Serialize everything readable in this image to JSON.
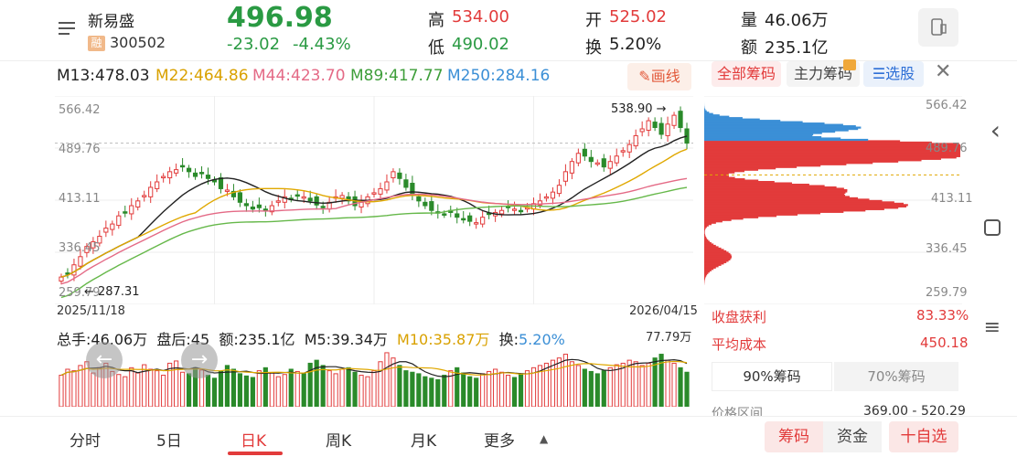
{
  "stock": {
    "name": "新易盛",
    "badge": "融",
    "code": "300502",
    "price": "496.98",
    "change": "-23.02",
    "change_pct": "-4.43%",
    "high_label": "高",
    "high": "534.00",
    "low_label": "低",
    "low": "490.02",
    "open_label": "开",
    "open": "525.02",
    "turnover_label": "换",
    "turnover": "5.20%",
    "volume_label": "量",
    "volume": "46.06万",
    "amount_label": "额",
    "amount": "235.1亿"
  },
  "ma_bar": {
    "m13": "M13:478.03",
    "m22": "M22:464.86",
    "m44": "M44:423.70",
    "m89": "M89:417.77",
    "m250": "M250:284.16",
    "draw_btn": "画线"
  },
  "chip_tabs": {
    "all": "全部筹码",
    "main": "主力筹码",
    "select": "选股"
  },
  "price_axis": {
    "left": [
      "566.42",
      "489.76",
      "413.11",
      "336.45",
      "259.79"
    ],
    "right": [
      "566.42",
      "489.76",
      "413.11",
      "336.45",
      "259.79"
    ]
  },
  "annotations": {
    "high_mark": "538.90",
    "low_mark": "287.31",
    "start_date": "2025/11/18",
    "end_date": "2026/04/15"
  },
  "volume_bar": {
    "total": "总手:46.06万",
    "after": "盘后:45",
    "amount": "额:235.1亿",
    "m5": "M5:39.34万",
    "m10": "M10:35.87万",
    "turn_label": "换:",
    "turn": "5.20%",
    "max": "77.79万"
  },
  "chip_stats": {
    "profit_label": "收盘获利",
    "profit": "83.33%",
    "avg_label": "平均成本",
    "avg": "450.18",
    "pct90": "90%筹码",
    "pct70": "70%筹码",
    "range_label": "价格区间",
    "range": "369.00 - 520.29"
  },
  "bottom_tabs": [
    "分时",
    "5日",
    "日K",
    "周K",
    "月K",
    "更多"
  ],
  "bottom_actions": {
    "chips": "筹码",
    "funds": "资金",
    "watch": "十自选"
  },
  "colors": {
    "up": "#e23b3b",
    "down": "#2a8a2a",
    "accent": "#e23b3b",
    "ma13": "#222222",
    "ma22": "#e0a800",
    "ma44": "#e46a86",
    "ma89": "#66b84a",
    "ma250": "#3b8fd6"
  },
  "chart_data": {
    "type": "candlestick",
    "x_range": [
      "2025/11/18",
      "2026/04/15"
    ],
    "ylim": [
      259.79,
      566.42
    ],
    "close_series": [
      300,
      305,
      318,
      330,
      345,
      352,
      360,
      372,
      378,
      390,
      395,
      405,
      412,
      420,
      432,
      440,
      448,
      455,
      458,
      462,
      455,
      448,
      452,
      445,
      440,
      430,
      428,
      418,
      410,
      405,
      400,
      402,
      398,
      405,
      412,
      418,
      415,
      420,
      418,
      412,
      406,
      402,
      410,
      418,
      420,
      412,
      405,
      410,
      418,
      424,
      430,
      440,
      455,
      445,
      432,
      420,
      412,
      405,
      398,
      395,
      392,
      395,
      388,
      384,
      382,
      380,
      388,
      392,
      395,
      398,
      402,
      400,
      396,
      402,
      408,
      412,
      418,
      425,
      435,
      455,
      470,
      482,
      478,
      470,
      468,
      462,
      470,
      478,
      486,
      495,
      508,
      518,
      530,
      520,
      510,
      525,
      538,
      520,
      497
    ],
    "volume_series": [
      42,
      50,
      48,
      55,
      60,
      45,
      52,
      58,
      47,
      43,
      40,
      52,
      45,
      56,
      50,
      48,
      42,
      58,
      61,
      46,
      44,
      52,
      49,
      42,
      38,
      47,
      55,
      50,
      44,
      41,
      39,
      48,
      52,
      45,
      40,
      43,
      50,
      47,
      44,
      58,
      62,
      55,
      48,
      44,
      50,
      52,
      46,
      42,
      40,
      48,
      60,
      72,
      65,
      55,
      48,
      46,
      44,
      40,
      38,
      36,
      42,
      48,
      52,
      45,
      40,
      38,
      44,
      47,
      50,
      46,
      42,
      39,
      44,
      48,
      52,
      55,
      58,
      62,
      65,
      70,
      60,
      55,
      50,
      47,
      44,
      48,
      52,
      56,
      58,
      62,
      60,
      55,
      58,
      65,
      70,
      62,
      58,
      52,
      46
    ]
  }
}
